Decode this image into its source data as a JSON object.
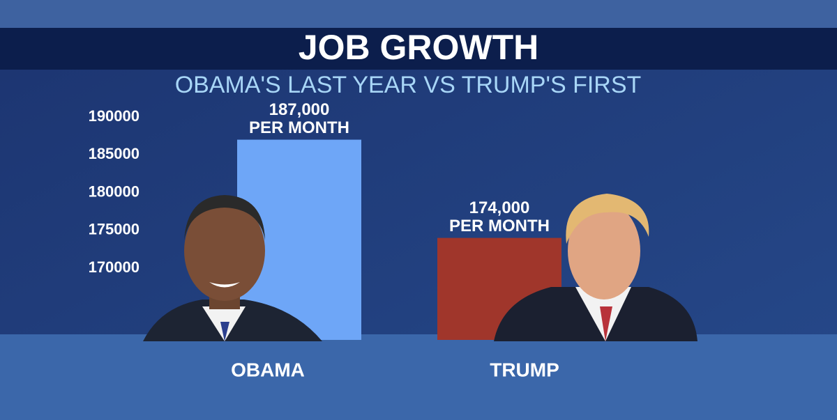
{
  "chart_data": {
    "type": "bar",
    "title": "JOB GROWTH",
    "subtitle": "OBAMA'S LAST YEAR VS TRUMP'S FIRST",
    "categories": [
      "OBAMA",
      "TRUMP"
    ],
    "values": [
      187000,
      174000
    ],
    "value_labels": [
      [
        "187,000",
        "PER MONTH"
      ],
      [
        "174,000",
        "PER MONTH"
      ]
    ],
    "colors": [
      "#6ea6f7",
      "#a0362b"
    ],
    "ylim": [
      160500,
      190000
    ],
    "yticks": [
      170000,
      175000,
      180000,
      185000,
      190000
    ],
    "grid": false
  }
}
